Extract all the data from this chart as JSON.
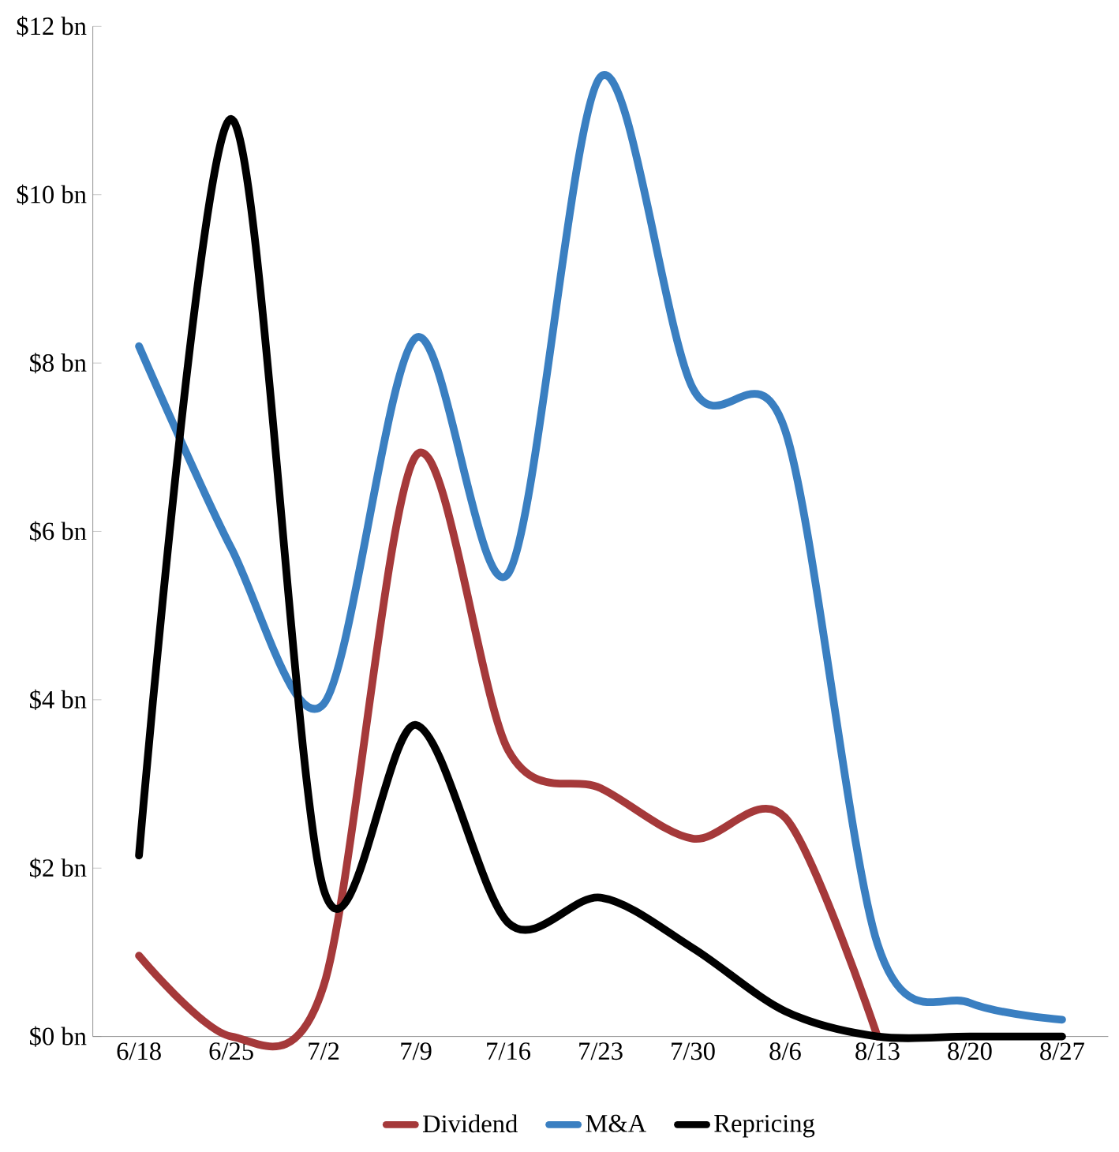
{
  "chart_data": {
    "type": "line",
    "categories": [
      "6/18",
      "6/25",
      "7/2",
      "7/9",
      "7/16",
      "7/23",
      "7/30",
      "8/6",
      "8/13",
      "8/20",
      "8/27"
    ],
    "series": [
      {
        "name": "Dividend",
        "color": "#a5393a",
        "values": [
          0.96,
          0.0,
          0.6,
          6.9,
          3.4,
          2.95,
          2.35,
          2.6,
          0.0,
          null,
          null
        ]
      },
      {
        "name": "M&A",
        "color": "#3a7fc1",
        "values": [
          8.2,
          5.8,
          3.95,
          8.3,
          5.5,
          11.4,
          7.7,
          7.2,
          1.1,
          0.4,
          0.2
        ]
      },
      {
        "name": "Repricing",
        "color": "#000000",
        "values": [
          2.15,
          10.9,
          1.75,
          3.7,
          1.35,
          1.65,
          1.05,
          0.3,
          0.0,
          0.0,
          0.0
        ]
      }
    ],
    "ylim": [
      0,
      12
    ],
    "yticks": [
      {
        "value": 0,
        "label": "$0 bn"
      },
      {
        "value": 2,
        "label": "$2 bn"
      },
      {
        "value": 4,
        "label": "$4 bn"
      },
      {
        "value": 6,
        "label": "$6 bn"
      },
      {
        "value": 8,
        "label": "$8 bn"
      },
      {
        "value": 10,
        "label": "$10 bn"
      },
      {
        "value": 12,
        "label": "$12 bn"
      }
    ],
    "grid": false,
    "legend": "bottom",
    "marker": "none",
    "line_style": "solid"
  }
}
